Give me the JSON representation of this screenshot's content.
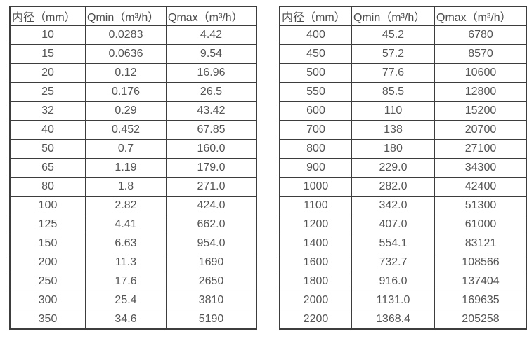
{
  "colors": {
    "border": "#3d3d3d",
    "text": "#555555",
    "background": "#ffffff"
  },
  "tables": [
    {
      "name": "diameter-flow-table-small",
      "headers": [
        "内径（mm）",
        "Qmin（m³/h）",
        "Qmax（m³/h）"
      ],
      "rows": [
        [
          "10",
          "0.0283",
          "4.42"
        ],
        [
          "15",
          "0.0636",
          "9.54"
        ],
        [
          "20",
          "0.12",
          "16.96"
        ],
        [
          "25",
          "0.176",
          "26.5"
        ],
        [
          "32",
          "0.29",
          "43.42"
        ],
        [
          "40",
          "0.452",
          "67.85"
        ],
        [
          "50",
          "0.7",
          "160.0"
        ],
        [
          "65",
          "1.19",
          "179.0"
        ],
        [
          "80",
          "1.8",
          "271.0"
        ],
        [
          "100",
          "2.82",
          "424.0"
        ],
        [
          "125",
          "4.41",
          "662.0"
        ],
        [
          "150",
          "6.63",
          "954.0"
        ],
        [
          "200",
          "11.3",
          "1690"
        ],
        [
          "250",
          "17.6",
          "2650"
        ],
        [
          "300",
          "25.4",
          "3810"
        ],
        [
          "350",
          "34.6",
          "5190"
        ]
      ]
    },
    {
      "name": "diameter-flow-table-large",
      "headers": [
        "内径（mm）",
        "Qmin（m³/h）",
        "Qmax（m³/h）"
      ],
      "rows": [
        [
          "400",
          "45.2",
          "6780"
        ],
        [
          "450",
          "57.2",
          "8570"
        ],
        [
          "500",
          "77.6",
          "10600"
        ],
        [
          "550",
          "85.5",
          "12800"
        ],
        [
          "600",
          "110",
          "15200"
        ],
        [
          "700",
          "138",
          "20700"
        ],
        [
          "800",
          "180",
          "27100"
        ],
        [
          "900",
          "229.0",
          "34300"
        ],
        [
          "1000",
          "282.0",
          "42400"
        ],
        [
          "1100",
          "342.0",
          "51300"
        ],
        [
          "1200",
          "407.0",
          "61000"
        ],
        [
          "1400",
          "554.1",
          "83121"
        ],
        [
          "1600",
          "732.7",
          "108566"
        ],
        [
          "1800",
          "916.0",
          "137404"
        ],
        [
          "2000",
          "1131.0",
          "169635"
        ],
        [
          "2200",
          "1368.4",
          "205258"
        ]
      ]
    }
  ]
}
